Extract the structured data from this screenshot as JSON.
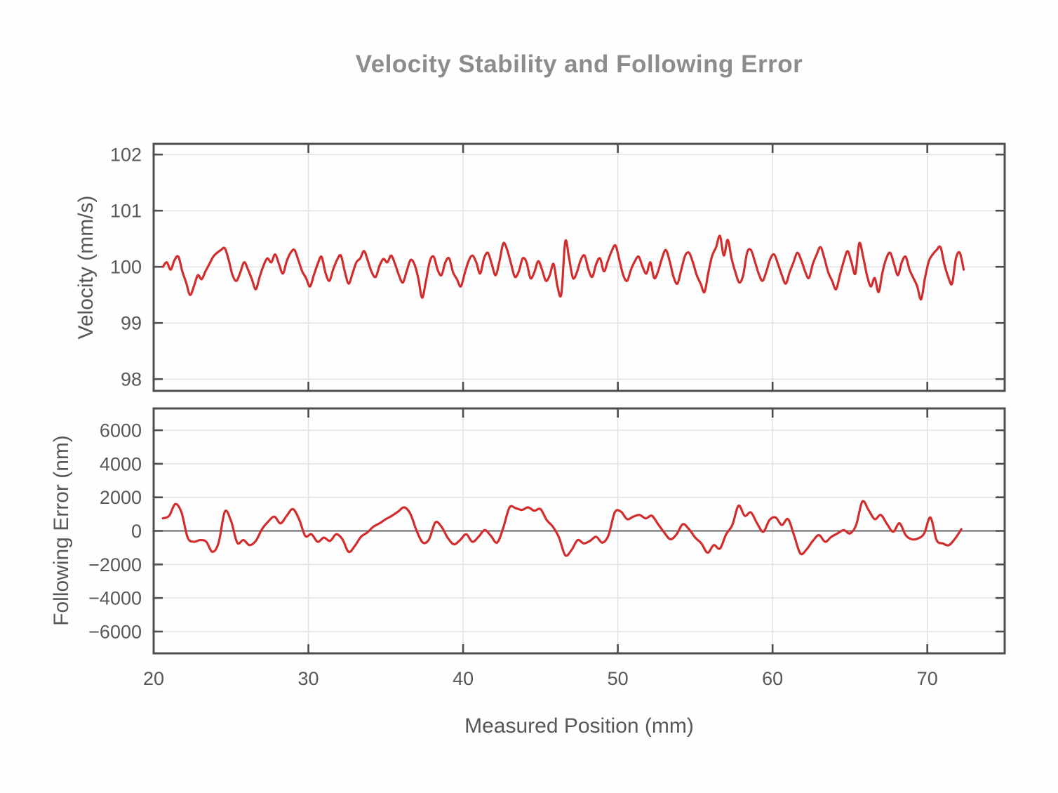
{
  "title": "Velocity Stability and Following Error",
  "xlabel": "Measured Position (mm)",
  "colors": {
    "line": "#d22c2c",
    "axis": "#4d4d4d",
    "grid": "#e2e2e2",
    "tick_text": "#575757",
    "title_text": "#8c8c8c",
    "zeroline": "#666666"
  },
  "chart_data": [
    {
      "type": "line",
      "ylabel": "Velocity (mm/s)",
      "ylim": [
        97.79,
        102.19
      ],
      "yticks": [
        98,
        99,
        100,
        101,
        102
      ],
      "xlim": [
        20,
        75
      ],
      "xticks": [
        20,
        30,
        40,
        50,
        60,
        70
      ],
      "grid": true,
      "zeroline": false,
      "x0": 20.6,
      "dx": 0.25,
      "values": [
        100.0,
        100.08,
        99.95,
        100.12,
        100.18,
        99.92,
        99.72,
        99.5,
        99.65,
        99.85,
        99.78,
        99.92,
        100.05,
        100.18,
        100.25,
        100.3,
        100.33,
        100.12,
        99.85,
        99.75,
        99.9,
        100.08,
        99.95,
        99.78,
        99.6,
        99.82,
        100.02,
        100.15,
        100.08,
        100.22,
        100.05,
        99.88,
        100.1,
        100.25,
        100.3,
        100.12,
        99.92,
        99.8,
        99.65,
        99.85,
        100.05,
        100.18,
        99.9,
        99.75,
        99.95,
        100.12,
        100.2,
        99.92,
        99.7,
        99.88,
        100.08,
        100.15,
        100.28,
        100.1,
        99.9,
        99.82,
        100.02,
        100.14,
        100.08,
        100.2,
        100.05,
        99.85,
        99.72,
        99.92,
        100.12,
        100.05,
        99.8,
        99.45,
        99.75,
        100.1,
        100.18,
        99.95,
        99.85,
        100.08,
        100.15,
        99.9,
        99.78,
        99.65,
        99.88,
        100.1,
        100.2,
        100.08,
        99.88,
        100.15,
        100.25,
        100.05,
        99.85,
        100.1,
        100.42,
        100.3,
        100.05,
        99.82,
        99.92,
        100.15,
        100.08,
        99.8,
        99.9,
        100.1,
        99.95,
        99.75,
        99.85,
        100.05,
        99.65,
        99.52,
        100.45,
        100.15,
        99.8,
        99.9,
        100.12,
        100.2,
        99.95,
        99.82,
        100.05,
        100.15,
        99.92,
        100.1,
        100.28,
        100.38,
        100.12,
        99.85,
        99.75,
        99.95,
        100.1,
        100.18,
        100.0,
        99.88,
        100.08,
        99.8,
        99.92,
        100.15,
        100.3,
        100.1,
        99.82,
        99.7,
        99.95,
        100.2,
        100.25,
        100.08,
        99.85,
        99.7,
        99.55,
        99.9,
        100.2,
        100.35,
        100.55,
        100.2,
        100.48,
        100.15,
        99.9,
        99.72,
        99.85,
        100.25,
        100.3,
        100.1,
        99.88,
        99.75,
        99.92,
        100.14,
        100.22,
        100.05,
        99.85,
        99.7,
        99.9,
        100.08,
        100.25,
        100.12,
        99.92,
        99.8,
        100.05,
        100.22,
        100.35,
        100.15,
        99.9,
        99.75,
        99.6,
        99.85,
        100.1,
        100.28,
        100.08,
        99.88,
        100.42,
        100.18,
        99.85,
        99.65,
        99.8,
        99.55,
        99.9,
        100.15,
        100.25,
        100.05,
        99.85,
        100.08,
        100.18,
        99.95,
        99.8,
        99.65,
        99.42,
        99.8,
        100.1,
        100.22,
        100.3,
        100.35,
        100.05,
        99.82,
        99.7,
        100.15,
        100.25,
        99.95
      ]
    },
    {
      "type": "line",
      "ylabel": "Following Error (nm)",
      "ylim": [
        -7300,
        7300
      ],
      "yticks": [
        -6000,
        -4000,
        -2000,
        0,
        2000,
        4000,
        6000
      ],
      "xlim": [
        20,
        75
      ],
      "xticks": [
        20,
        30,
        40,
        50,
        60,
        70
      ],
      "grid": true,
      "zeroline": true,
      "x0": 20.6,
      "dx": 0.4,
      "values": [
        750,
        900,
        1600,
        1100,
        -400,
        -650,
        -550,
        -650,
        -1250,
        -700,
        1150,
        600,
        -700,
        -550,
        -850,
        -600,
        100,
        550,
        850,
        450,
        900,
        1300,
        700,
        -300,
        -200,
        -650,
        -400,
        -600,
        -200,
        -500,
        -1250,
        -900,
        -350,
        -100,
        250,
        450,
        700,
        900,
        1150,
        1400,
        1000,
        0,
        -700,
        -500,
        500,
        250,
        -400,
        -800,
        -550,
        -200,
        -650,
        -350,
        50,
        -300,
        -700,
        200,
        1400,
        1350,
        1250,
        1400,
        1200,
        1300,
        650,
        250,
        -400,
        -1450,
        -1150,
        -550,
        -750,
        -600,
        -350,
        -700,
        -250,
        1100,
        1150,
        700,
        850,
        950,
        750,
        900,
        400,
        -100,
        -500,
        -200,
        400,
        100,
        -400,
        -750,
        -1300,
        -850,
        -1050,
        -200,
        350,
        1500,
        900,
        1100,
        450,
        -50,
        650,
        800,
        350,
        700,
        -300,
        -1350,
        -1100,
        -600,
        -250,
        -650,
        -350,
        -150,
        50,
        -150,
        350,
        1750,
        1250,
        700,
        950,
        400,
        -50,
        450,
        -250,
        -500,
        -450,
        -150,
        800,
        -550,
        -750,
        -850,
        -450,
        100
      ]
    }
  ]
}
